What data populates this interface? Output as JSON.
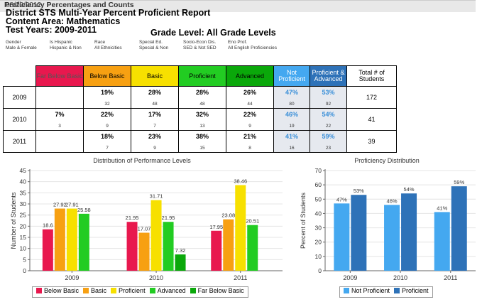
{
  "header": {
    "date": "08/20/2012",
    "title_line1": "District STS Multi-Year Percent Proficient Report",
    "title_line2": "Content Area: Mathematics",
    "test_years": "Test Years: 2009-2011",
    "grade_level": "Grade Level: All Grade Levels"
  },
  "filters": [
    {
      "label": "Gender",
      "value": "Male & Female"
    },
    {
      "label": "Is Hispanic",
      "value": "Hispanic & Non"
    },
    {
      "label": "Race",
      "value": "All Ethnicities"
    },
    {
      "label": "Special Ed.",
      "value": "Special & Non"
    },
    {
      "label": "Socio-Econ Dis.",
      "value": "SED & Not SED"
    },
    {
      "label": "Eno Prof.",
      "value": "All English Proficiencies"
    }
  ],
  "section_title": "Proficiency Percentages and Counts",
  "table": {
    "columns": [
      {
        "label": "Far Below Basic",
        "color": "#e8184e",
        "text": "#555555"
      },
      {
        "label": "Below Basic",
        "color": "#f7a012",
        "text": "#000000"
      },
      {
        "label": "Basic",
        "color": "#f7e000",
        "text": "#000000"
      },
      {
        "label": "Proficient",
        "color": "#22cc22",
        "text": "#000000"
      },
      {
        "label": "Advanced",
        "color": "#0aa80a",
        "text": "#000000"
      },
      {
        "label": "Not Proficient",
        "color": "#44a8f0",
        "text": "#ffffff"
      },
      {
        "label": "Proficient & Advanced",
        "color": "#2e72b8",
        "text": "#ffffff"
      }
    ],
    "total_label": "Total # of Students",
    "rows": [
      {
        "year": "2009",
        "cells": [
          {
            "pct": "",
            "n": ""
          },
          {
            "pct": "19%",
            "n": "32"
          },
          {
            "pct": "28%",
            "n": "48"
          },
          {
            "pct": "28%",
            "n": "48"
          },
          {
            "pct": "26%",
            "n": "44"
          },
          {
            "pct": "47%",
            "n": "80"
          },
          {
            "pct": "53%",
            "n": "92"
          }
        ],
        "total": "172"
      },
      {
        "year": "2010",
        "cells": [
          {
            "pct": "7%",
            "n": "3"
          },
          {
            "pct": "22%",
            "n": "9"
          },
          {
            "pct": "17%",
            "n": "7"
          },
          {
            "pct": "32%",
            "n": "13"
          },
          {
            "pct": "22%",
            "n": "9"
          },
          {
            "pct": "46%",
            "n": "19"
          },
          {
            "pct": "54%",
            "n": "22"
          }
        ],
        "total": "41"
      },
      {
        "year": "2011",
        "cells": [
          {
            "pct": "",
            "n": ""
          },
          {
            "pct": "18%",
            "n": "7"
          },
          {
            "pct": "23%",
            "n": "9"
          },
          {
            "pct": "38%",
            "n": "15"
          },
          {
            "pct": "21%",
            "n": "8"
          },
          {
            "pct": "41%",
            "n": "16"
          },
          {
            "pct": "59%",
            "n": "23"
          }
        ],
        "total": "39"
      }
    ]
  },
  "chart_data": [
    {
      "type": "bar",
      "title": "Distribution of Performance Levels",
      "xlabel": "",
      "ylabel": "Number of Students",
      "ylim": [
        0,
        45
      ],
      "yticks": [
        0,
        5,
        10,
        15,
        20,
        25,
        30,
        35,
        40,
        45
      ],
      "categories": [
        "2009",
        "2010",
        "2011"
      ],
      "series": [
        {
          "name": "Below Basic",
          "color": "#e8184e",
          "values": [
            18.6,
            21.95,
            17.95
          ],
          "labels": [
            "18.6",
            "21.95",
            "17.95"
          ]
        },
        {
          "name": "Basic",
          "color": "#f7a012",
          "values": [
            27.92,
            17.07,
            23.08
          ],
          "labels": [
            "27.92",
            "17.07",
            "23.08"
          ]
        },
        {
          "name": "Proficient",
          "color": "#f7e000",
          "values": [
            27.91,
            31.71,
            38.46
          ],
          "labels": [
            "27.91",
            "31.71",
            "38.46"
          ]
        },
        {
          "name": "Advanced",
          "color": "#22cc22",
          "values": [
            25.58,
            21.95,
            20.51
          ],
          "labels": [
            "25.58",
            "21.95",
            "20.51"
          ]
        },
        {
          "name": "Far Below Basic",
          "color": "#0aa80a",
          "values": [
            0,
            7.32,
            0
          ],
          "labels": [
            "",
            "7.32",
            ""
          ]
        }
      ],
      "legend": "bottom"
    },
    {
      "type": "bar",
      "title": "Proficiency Distribution",
      "xlabel": "",
      "ylabel": "Percent of Students",
      "ylim": [
        0,
        70
      ],
      "yticks": [
        0,
        10,
        20,
        30,
        40,
        50,
        60,
        70
      ],
      "categories": [
        "2009",
        "2010",
        "2011"
      ],
      "series": [
        {
          "name": "Not Proficient",
          "color": "#44a8f0",
          "values": [
            47,
            46,
            41
          ],
          "labels": [
            "47%",
            "46%",
            "41%"
          ]
        },
        {
          "name": "Proficient",
          "color": "#2e72b8",
          "values": [
            53,
            54,
            59
          ],
          "labels": [
            "53%",
            "54%",
            "59%"
          ]
        }
      ],
      "legend": "bottom"
    }
  ]
}
